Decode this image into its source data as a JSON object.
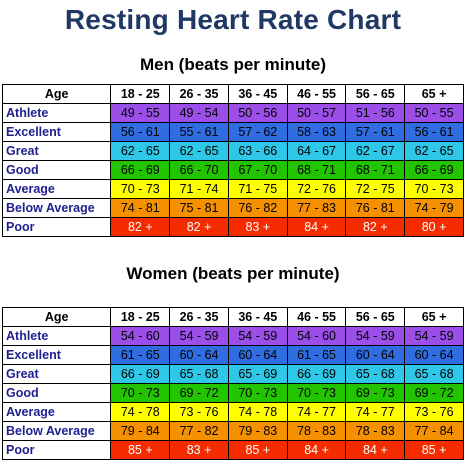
{
  "title": "Resting Heart Rate Chart",
  "age_header": "Age",
  "age_groups": [
    "18 - 25",
    "26 - 35",
    "36 - 45",
    "46 - 55",
    "56 - 65",
    "65 +"
  ],
  "category_colors": {
    "Athlete": "#9b4fe8",
    "Excellent": "#2f6de0",
    "Great": "#2ec7e8",
    "Good": "#22c400",
    "Average": "#ffff00",
    "Below Average": "#f59100",
    "Poor": "#f52c00"
  },
  "men": {
    "heading": "Men (beats per minute)",
    "rows": [
      {
        "label": "Athlete",
        "values": [
          "49 - 55",
          "49 - 54",
          "50 - 56",
          "50 - 57",
          "51 - 56",
          "50 - 55"
        ]
      },
      {
        "label": "Excellent",
        "values": [
          "56 - 61",
          "55 - 61",
          "57 - 62",
          "58 - 63",
          "57 - 61",
          "56 - 61"
        ]
      },
      {
        "label": "Great",
        "values": [
          "62 - 65",
          "62 - 65",
          "63 - 66",
          "64 - 67",
          "62 - 67",
          "62 - 65"
        ]
      },
      {
        "label": "Good",
        "values": [
          "66 - 69",
          "66 - 70",
          "67 - 70",
          "68 - 71",
          "68 - 71",
          "66 - 69"
        ]
      },
      {
        "label": "Average",
        "values": [
          "70 - 73",
          "71 - 74",
          "71 - 75",
          "72 - 76",
          "72 - 75",
          "70 - 73"
        ]
      },
      {
        "label": "Below Average",
        "values": [
          "74 - 81",
          "75 - 81",
          "76 - 82",
          "77 - 83",
          "76 - 81",
          "74 - 79"
        ]
      },
      {
        "label": "Poor",
        "values": [
          "82 +",
          "82 +",
          "83 +",
          "84 +",
          "82 +",
          "80 +"
        ]
      }
    ]
  },
  "women": {
    "heading": "Women (beats per minute)",
    "rows": [
      {
        "label": "Athlete",
        "values": [
          "54 - 60",
          "54 - 59",
          "54 - 59",
          "54 - 60",
          "54 - 59",
          "54 - 59"
        ]
      },
      {
        "label": "Excellent",
        "values": [
          "61 - 65",
          "60 - 64",
          "60 - 64",
          "61 - 65",
          "60 - 64",
          "60 - 64"
        ]
      },
      {
        "label": "Great",
        "values": [
          "66 - 69",
          "65 - 68",
          "65 - 69",
          "66 - 69",
          "65 - 68",
          "65 - 68"
        ]
      },
      {
        "label": "Good",
        "values": [
          "70 - 73",
          "69 - 72",
          "70 - 73",
          "70 - 73",
          "69 - 73",
          "69 - 72"
        ]
      },
      {
        "label": "Average",
        "values": [
          "74 - 78",
          "73 - 76",
          "74 - 78",
          "74 - 77",
          "74 - 77",
          "73 - 76"
        ]
      },
      {
        "label": "Below Average",
        "values": [
          "79 - 84",
          "77 - 82",
          "79 - 83",
          "78 - 83",
          "78 - 83",
          "77 - 84"
        ]
      },
      {
        "label": "Poor",
        "values": [
          "85 +",
          "83 +",
          "85 +",
          "84 +",
          "84 +",
          "85 +"
        ]
      }
    ]
  }
}
